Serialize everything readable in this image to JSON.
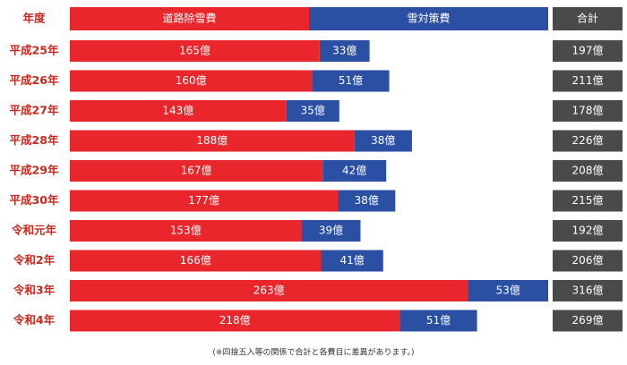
{
  "chart_data": {
    "type": "stacked-bar-horizontal",
    "category_header": "年度",
    "categories": [
      "平成25年",
      "平成26年",
      "平成27年",
      "平成28年",
      "平成29年",
      "平成30年",
      "令和元年",
      "令和2年",
      "令和3年",
      "令和4年"
    ],
    "series": [
      {
        "name": "道路除雪費",
        "color": "#e8262b",
        "values": [
          165,
          160,
          143,
          188,
          167,
          177,
          153,
          166,
          263,
          218
        ],
        "value_labels": [
          "165億",
          "160億",
          "143億",
          "188億",
          "167億",
          "177億",
          "153億",
          "166億",
          "263億",
          "218億"
        ]
      },
      {
        "name": "雪対策費",
        "color": "#2b4fa3",
        "values": [
          33,
          51,
          35,
          38,
          42,
          38,
          39,
          41,
          53,
          51
        ],
        "value_labels": [
          "33億",
          "51億",
          "35億",
          "38億",
          "42億",
          "38億",
          "39億",
          "41億",
          "53億",
          "51億"
        ]
      }
    ],
    "totals": {
      "name": "合計",
      "color": "#4a4a4a",
      "values": [
        197,
        211,
        178,
        226,
        208,
        215,
        192,
        206,
        316,
        269
      ],
      "value_labels": [
        "197億",
        "211億",
        "178億",
        "226億",
        "208億",
        "215億",
        "192億",
        "206億",
        "316億",
        "269億"
      ]
    },
    "note": "(※四捨五入等の関係で合計と各費目に差異があります。)"
  }
}
